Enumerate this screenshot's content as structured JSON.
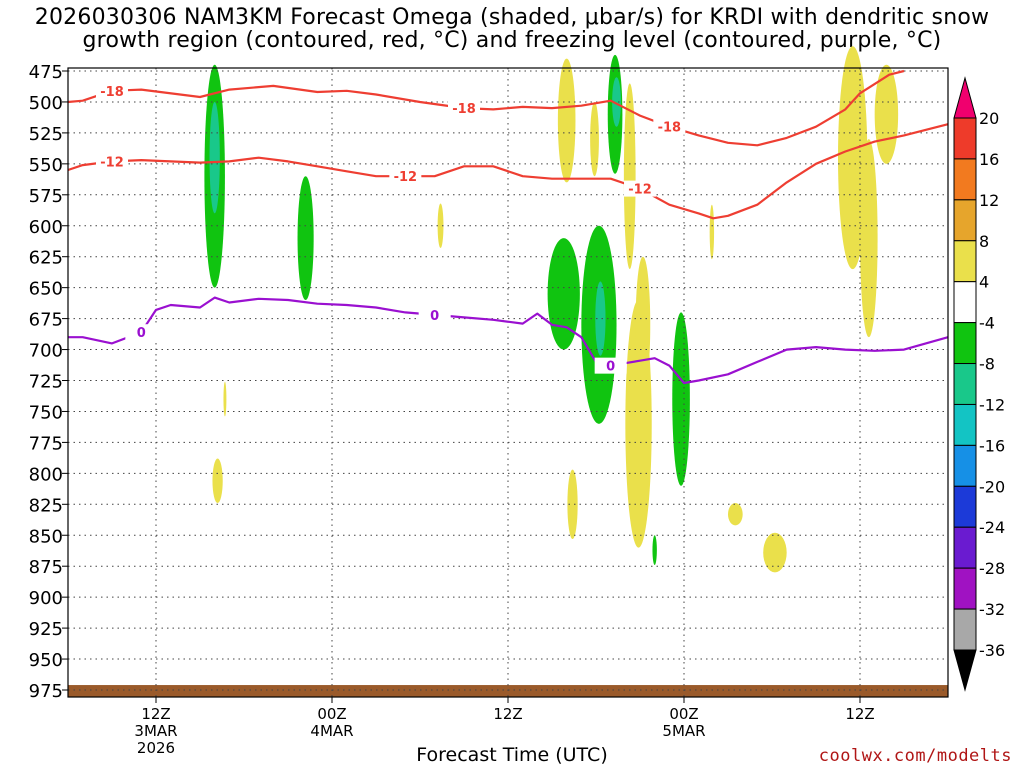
{
  "title": {
    "line1": "2026030306 NAM3KM Forecast Omega (shaded, μbar/s) for KRDI with dendritic snow",
    "line2": "growth region (contoured, red, °C) and freezing level (contoured, purple, °C)"
  },
  "credit": "coolwx.com/modelts",
  "chart_data": {
    "type": "heatmap",
    "title": "2026030306 NAM3KM Forecast Omega (shaded, μbar/s) for KRDI with dendritic snow growth region (contoured, red, °C) and freezing level (contoured, purple, °C)",
    "xlabel": "Forecast Time (UTC)",
    "ylabel": "",
    "y_axis": {
      "ticks": [
        475,
        500,
        525,
        550,
        575,
        600,
        625,
        650,
        675,
        700,
        725,
        750,
        775,
        800,
        825,
        850,
        875,
        900,
        925,
        950,
        975
      ],
      "range": [
        475,
        975
      ],
      "inverted": true
    },
    "x_axis": {
      "hours_range": [
        3,
        63
      ],
      "ticks": [
        {
          "hour": 9,
          "lines": [
            "12Z",
            "3MAR",
            "2026"
          ]
        },
        {
          "hour": 21,
          "lines": [
            "00Z",
            "4MAR"
          ]
        },
        {
          "hour": 33,
          "lines": [
            "12Z"
          ]
        },
        {
          "hour": 45,
          "lines": [
            "00Z",
            "5MAR"
          ]
        },
        {
          "hour": 57,
          "lines": [
            "12Z"
          ]
        }
      ]
    },
    "grid": true,
    "colorbar": {
      "labels": [
        "20",
        "16",
        "12",
        "8",
        "4",
        "-4",
        "-8",
        "-12",
        "-16",
        "-20",
        "-24",
        "-28",
        "-32",
        "-36"
      ],
      "colors": [
        "#f0006e",
        "#ee3b2a",
        "#f27a1f",
        "#e6a52c",
        "#eae04b",
        "#ffffff",
        "#10c410",
        "#19c88a",
        "#13c4c4",
        "#1690e6",
        "#1c3ad8",
        "#6a1bd0",
        "#a012c2",
        "#a8a8a8",
        "#000000"
      ]
    },
    "contour_lines": [
      {
        "label": "-18",
        "color": "#ee3e32",
        "points": [
          [
            3,
            500
          ],
          [
            4,
            499
          ],
          [
            6,
            491
          ],
          [
            8,
            490
          ],
          [
            12,
            496
          ],
          [
            14,
            490
          ],
          [
            17,
            487
          ],
          [
            20,
            492
          ],
          [
            22,
            491
          ],
          [
            24,
            494
          ],
          [
            27,
            500
          ],
          [
            30,
            505
          ],
          [
            32,
            506
          ],
          [
            34,
            504
          ],
          [
            36,
            505
          ],
          [
            38,
            503
          ],
          [
            40,
            499
          ],
          [
            42,
            511
          ],
          [
            44,
            520
          ],
          [
            46,
            527
          ],
          [
            48,
            533
          ],
          [
            50,
            535
          ],
          [
            52,
            529
          ],
          [
            54,
            520
          ],
          [
            56,
            506
          ],
          [
            57,
            493
          ],
          [
            59,
            478
          ],
          [
            60,
            475
          ]
        ]
      },
      {
        "label": "-12",
        "color": "#ee3e32",
        "points": [
          [
            3,
            555
          ],
          [
            4,
            551
          ],
          [
            6,
            548
          ],
          [
            8,
            547
          ],
          [
            10,
            548
          ],
          [
            12,
            549
          ],
          [
            14,
            548
          ],
          [
            16,
            545
          ],
          [
            18,
            548
          ],
          [
            20,
            552
          ],
          [
            22,
            556
          ],
          [
            24,
            560
          ],
          [
            26,
            560
          ],
          [
            28,
            560
          ],
          [
            30,
            552
          ],
          [
            32,
            552
          ],
          [
            34,
            560
          ],
          [
            36,
            562
          ],
          [
            38,
            562
          ],
          [
            40,
            562
          ],
          [
            42,
            570
          ],
          [
            44,
            583
          ],
          [
            46,
            590
          ],
          [
            47,
            594
          ],
          [
            48,
            592
          ],
          [
            50,
            583
          ],
          [
            52,
            565
          ],
          [
            54,
            550
          ],
          [
            56,
            540
          ],
          [
            58,
            532
          ],
          [
            60,
            527
          ],
          [
            63,
            518
          ]
        ]
      },
      {
        "label": "0",
        "color": "#9a10d0",
        "points": [
          [
            3,
            690
          ],
          [
            4,
            690
          ],
          [
            6,
            695
          ],
          [
            8,
            686
          ],
          [
            9,
            668
          ],
          [
            10,
            664
          ],
          [
            12,
            666
          ],
          [
            13,
            658
          ],
          [
            14,
            662
          ],
          [
            16,
            659
          ],
          [
            18,
            660
          ],
          [
            20,
            663
          ],
          [
            22,
            664
          ],
          [
            24,
            666
          ],
          [
            26,
            670
          ],
          [
            28,
            672
          ],
          [
            30,
            674
          ],
          [
            32,
            676
          ],
          [
            34,
            679
          ],
          [
            35,
            671
          ],
          [
            36,
            680
          ],
          [
            37,
            682
          ],
          [
            38,
            690
          ],
          [
            39,
            710
          ],
          [
            40,
            713
          ],
          [
            42,
            709
          ],
          [
            43,
            707
          ],
          [
            44,
            713
          ],
          [
            45,
            727
          ],
          [
            46,
            725
          ],
          [
            48,
            720
          ],
          [
            50,
            710
          ],
          [
            52,
            700
          ],
          [
            54,
            698
          ],
          [
            56,
            700
          ],
          [
            58,
            701
          ],
          [
            60,
            700
          ],
          [
            63,
            690
          ]
        ]
      }
    ],
    "shaded_regions": [
      {
        "level": "-8",
        "color": "#10c410",
        "center": [
          13.0,
          560
        ],
        "rx": 0.7,
        "ry": 90
      },
      {
        "level": "-12",
        "color": "#19c88a",
        "center": [
          13.0,
          545
        ],
        "rx": 0.35,
        "ry": 45
      },
      {
        "level": "-8",
        "color": "#10c410",
        "center": [
          19.2,
          610
        ],
        "rx": 0.55,
        "ry": 50
      },
      {
        "level": "-8",
        "color": "#10c410",
        "center": [
          40.3,
          510
        ],
        "rx": 0.5,
        "ry": 48
      },
      {
        "level": "-12",
        "color": "#19c88a",
        "center": [
          40.4,
          500
        ],
        "rx": 0.3,
        "ry": 20
      },
      {
        "level": "-8",
        "color": "#10c410",
        "center": [
          36.8,
          655
        ],
        "rx": 1.1,
        "ry": 45
      },
      {
        "level": "-8",
        "color": "#10c410",
        "center": [
          39.2,
          680
        ],
        "rx": 1.2,
        "ry": 80
      },
      {
        "level": "-12",
        "color": "#19c88a",
        "center": [
          39.3,
          675
        ],
        "rx": 0.35,
        "ry": 30
      },
      {
        "level": "-8",
        "color": "#10c410",
        "center": [
          44.8,
          740
        ],
        "rx": 0.6,
        "ry": 70
      },
      {
        "level": "-8",
        "color": "#10c410",
        "center": [
          43.0,
          862
        ],
        "rx": 0.15,
        "ry": 12
      },
      {
        "level": "4",
        "color": "#eae04b",
        "center": [
          37.0,
          515
        ],
        "rx": 0.6,
        "ry": 50
      },
      {
        "level": "4",
        "color": "#eae04b",
        "center": [
          38.9,
          530
        ],
        "rx": 0.3,
        "ry": 30
      },
      {
        "level": "4",
        "color": "#eae04b",
        "center": [
          41.3,
          560
        ],
        "rx": 0.4,
        "ry": 75
      },
      {
        "level": "4",
        "color": "#eae04b",
        "center": [
          41.9,
          760
        ],
        "rx": 0.9,
        "ry": 100
      },
      {
        "level": "4",
        "color": "#eae04b",
        "center": [
          42.2,
          680
        ],
        "rx": 0.5,
        "ry": 55
      },
      {
        "level": "4",
        "color": "#eae04b",
        "center": [
          46.9,
          605
        ],
        "rx": 0.15,
        "ry": 22
      },
      {
        "level": "4",
        "color": "#eae04b",
        "center": [
          28.4,
          600
        ],
        "rx": 0.2,
        "ry": 18
      },
      {
        "level": "4",
        "color": "#eae04b",
        "center": [
          13.7,
          740
        ],
        "rx": 0.1,
        "ry": 14
      },
      {
        "level": "4",
        "color": "#eae04b",
        "center": [
          13.2,
          806
        ],
        "rx": 0.35,
        "ry": 18
      },
      {
        "level": "4",
        "color": "#eae04b",
        "center": [
          37.4,
          825
        ],
        "rx": 0.35,
        "ry": 28
      },
      {
        "level": "4",
        "color": "#eae04b",
        "center": [
          48.5,
          833
        ],
        "rx": 0.5,
        "ry": 9
      },
      {
        "level": "4",
        "color": "#eae04b",
        "center": [
          51.2,
          864
        ],
        "rx": 0.8,
        "ry": 16
      },
      {
        "level": "4",
        "color": "#eae04b",
        "center": [
          56.5,
          545
        ],
        "rx": 1.0,
        "ry": 90
      },
      {
        "level": "4",
        "color": "#eae04b",
        "center": [
          57.6,
          610
        ],
        "rx": 0.6,
        "ry": 80
      },
      {
        "level": "4",
        "color": "#eae04b",
        "center": [
          58.8,
          510
        ],
        "rx": 0.8,
        "ry": 40
      }
    ],
    "terrain": {
      "color": "#9a5a2a",
      "top_pressure": 971,
      "bottom_pressure": 980
    }
  }
}
